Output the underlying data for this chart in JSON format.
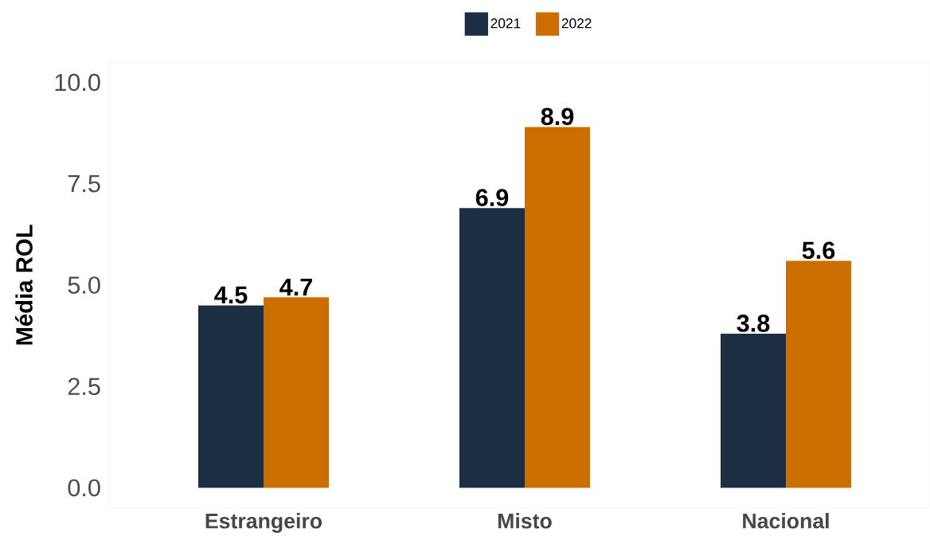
{
  "chart_data": {
    "type": "bar",
    "ylabel": "Média ROL",
    "categories": [
      "Estrangeiro",
      "Misto",
      "Nacional"
    ],
    "series": [
      {
        "name": "2021",
        "color": "#1b2e42",
        "values": [
          4.5,
          6.9,
          3.8
        ]
      },
      {
        "name": "2022",
        "color": "#cc6d00",
        "values": [
          4.7,
          8.9,
          5.6
        ]
      }
    ],
    "ylim": [
      -0.5,
      10.5
    ],
    "yticks": [
      {
        "value": 0,
        "label": "0.0"
      },
      2.5,
      {
        "value": 5,
        "label": "5.0"
      },
      7.5,
      {
        "value": 10,
        "label": "10.0"
      }
    ],
    "data_labels": true,
    "legend": "top",
    "grid": false
  }
}
